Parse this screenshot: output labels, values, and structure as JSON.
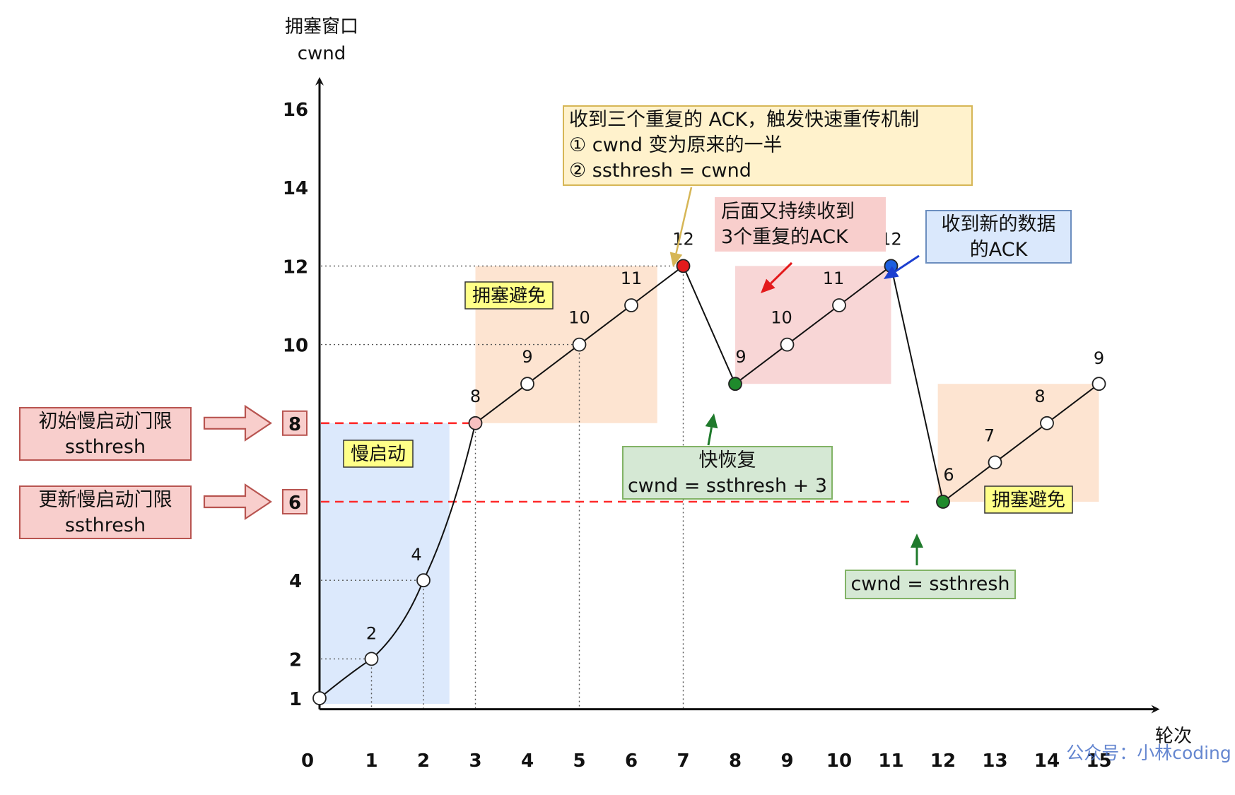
{
  "chart_data": {
    "type": "line",
    "ylabel_line1": "拥塞窗口",
    "ylabel_line2": "cwnd",
    "xlabel": "轮次",
    "x_ticks": [
      "0",
      "1",
      "2",
      "3",
      "4",
      "5",
      "6",
      "7",
      "8",
      "9",
      "10",
      "11",
      "12",
      "13",
      "14",
      "15"
    ],
    "y_ticks": [
      {
        "value": 1,
        "label": "1"
      },
      {
        "value": 2,
        "label": "2"
      },
      {
        "value": 4,
        "label": "4"
      },
      {
        "value": 6,
        "label": "6"
      },
      {
        "value": 8,
        "label": "8"
      },
      {
        "value": 10,
        "label": "10"
      },
      {
        "value": 12,
        "label": "12"
      },
      {
        "value": 14,
        "label": "14"
      },
      {
        "value": 16,
        "label": "16"
      }
    ],
    "xlim": [
      0,
      15
    ],
    "ylim": [
      1,
      16
    ],
    "series": [
      {
        "points": [
          {
            "x": 0,
            "y": 1,
            "label": "",
            "fill": "#ffffff"
          },
          {
            "x": 1,
            "y": 2,
            "label": "2",
            "fill": "#ffffff"
          },
          {
            "x": 2,
            "y": 4,
            "label": "4",
            "fill": "#ffffff"
          },
          {
            "x": 3,
            "y": 8,
            "label": "8",
            "fill": "#f8c0c0"
          },
          {
            "x": 4,
            "y": 9,
            "label": "9",
            "fill": "#ffffff"
          },
          {
            "x": 5,
            "y": 10,
            "label": "10",
            "fill": "#ffffff"
          },
          {
            "x": 6,
            "y": 11,
            "label": "11",
            "fill": "#ffffff"
          },
          {
            "x": 7,
            "y": 12,
            "label": "12",
            "fill": "#e31a1c"
          },
          {
            "x": 8,
            "y": 9,
            "label": "9",
            "fill": "#1f8a2c"
          },
          {
            "x": 9,
            "y": 10,
            "label": "10",
            "fill": "#ffffff"
          },
          {
            "x": 10,
            "y": 11,
            "label": "11",
            "fill": "#ffffff"
          },
          {
            "x": 11,
            "y": 12,
            "label": "12",
            "fill": "#1c5fe0"
          },
          {
            "x": 12,
            "y": 6,
            "label": "6",
            "fill": "#1f8a2c"
          },
          {
            "x": 13,
            "y": 7,
            "label": "7",
            "fill": "#ffffff"
          },
          {
            "x": 14,
            "y": 8,
            "label": "8",
            "fill": "#ffffff"
          },
          {
            "x": 15,
            "y": 9,
            "label": "9",
            "fill": "#ffffff"
          }
        ]
      }
    ],
    "thresholds": [
      {
        "y": 8,
        "label": "8",
        "x_end": 3,
        "color": "#ff2a2a"
      },
      {
        "y": 6,
        "label": "6",
        "x_end": 11.4,
        "color": "#ff2a2a"
      }
    ],
    "regions": [
      {
        "x0": 0,
        "x1": 2.5,
        "y0": 1,
        "y1": 8,
        "color": "#dae8fc",
        "label": "慢启动"
      },
      {
        "x0": 3,
        "x1": 6.5,
        "y0": 8,
        "y1": 12,
        "color": "#fde3cf",
        "label": "拥塞避免"
      },
      {
        "x0": 8,
        "x1": 11,
        "y0": 9,
        "y1": 12,
        "color": "#f8d4d4",
        "label": ""
      },
      {
        "x0": 11.9,
        "x1": 15,
        "y0": 6,
        "y1": 9,
        "color": "#fde3cf",
        "label": "拥塞避免"
      }
    ],
    "grid": false
  },
  "annotations": {
    "fast_retransmit": {
      "lines": [
        "收到三个重复的 ACK，触发快速重传机制",
        "① cwnd 变为原来的一半",
        "② ssthresh = cwnd"
      ],
      "bg": "#fff2cc",
      "border": "#d6b656"
    },
    "repeat_ack": {
      "lines": [
        "后面又持续收到",
        "3个重复的ACK"
      ],
      "bg": "#f8cecc",
      "border": "#f8cecc"
    },
    "new_ack": {
      "lines": [
        "收到新的数据",
        "的ACK"
      ],
      "bg": "#dae8fc",
      "border": "#6c8ebf"
    },
    "fast_recovery": {
      "lines": [
        "快恢复",
        "cwnd = ssthresh + 3"
      ],
      "bg": "#d5e8d4",
      "border": "#82b366"
    },
    "cwnd_eq": {
      "lines": [
        "cwnd = ssthresh"
      ],
      "bg": "#d5e8d4",
      "border": "#82b366"
    },
    "init_ssthresh": {
      "lines": [
        "初始慢启动门限",
        "ssthresh"
      ],
      "bg": "#f8cecc",
      "border": "#b85450"
    },
    "update_ssthresh": {
      "lines": [
        "更新慢启动门限",
        "ssthresh"
      ],
      "bg": "#f8cecc",
      "border": "#b85450"
    }
  },
  "watermark": "公众号：小林coding",
  "colors": {
    "axis": "#111111",
    "line": "#111111",
    "dotted": "#555555",
    "arrow_yellow": "#d6b656",
    "arrow_red": "#e31a1c",
    "arrow_blue": "#1c3fd0",
    "arrow_green": "#1f7a2c",
    "label_yellow": "#ffff88",
    "threshold_arrow_fill": "#f8cecc",
    "threshold_arrow_stroke": "#b85450"
  }
}
